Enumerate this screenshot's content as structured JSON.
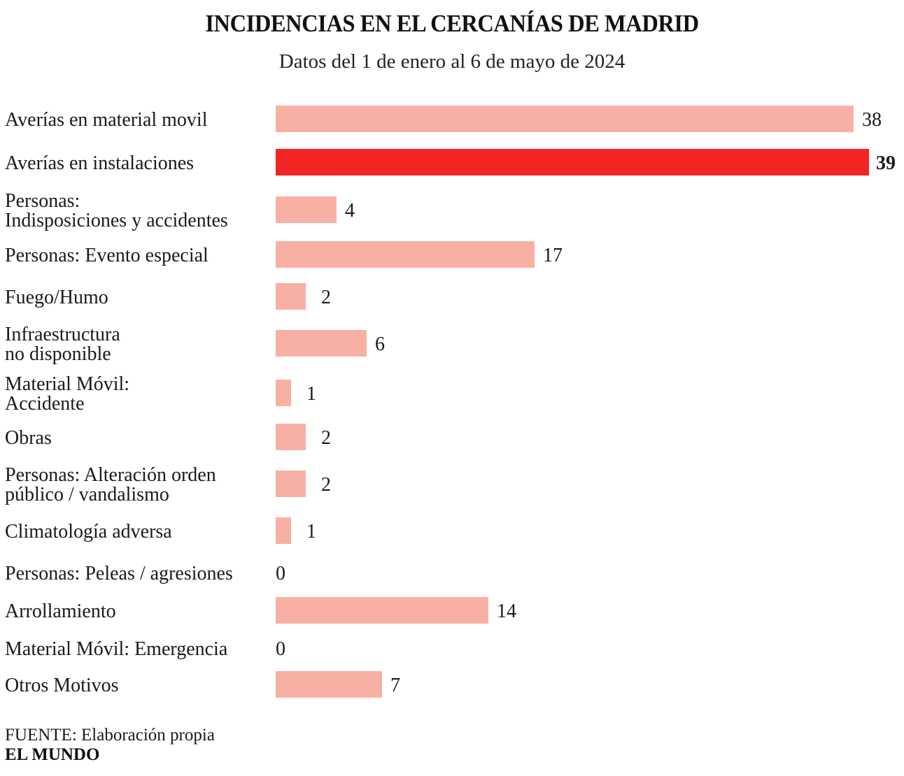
{
  "chart_data": {
    "type": "bar",
    "orientation": "horizontal",
    "title": "INCIDENCIAS EN EL CERCANÍAS DE MADRID",
    "subtitle": "Datos del 1 de enero al 6 de mayo de 2024",
    "categories": [
      [
        "Averías en material movil"
      ],
      [
        "Averías en instalaciones"
      ],
      [
        "Personas:",
        "Indisposiciones y accidentes"
      ],
      [
        "Personas: Evento especial"
      ],
      [
        "Fuego/Humo"
      ],
      [
        "Infraestructura",
        "no disponible"
      ],
      [
        "Material Móvil:",
        "Accidente"
      ],
      [
        "Obras"
      ],
      [
        "Personas: Alteración orden",
        "público / vandalismo"
      ],
      [
        "Climatología adversa"
      ],
      [
        "Personas: Peleas / agresiones"
      ],
      [
        "Arrollamiento"
      ],
      [
        "Material Móvil: Emergencia"
      ],
      [
        "Otros Motivos"
      ]
    ],
    "values": [
      38,
      39,
      4,
      17,
      2,
      6,
      1,
      2,
      2,
      1,
      0,
      14,
      0,
      7
    ],
    "highlight_index": 1,
    "xlim": [
      0,
      39
    ],
    "grid": false,
    "colors": {
      "bar": "#f9b0a4",
      "highlight": "#f22424"
    }
  },
  "source": {
    "prefix": "FUENTE:",
    "text": "Elaboración propia"
  },
  "brand": "EL MUNDO"
}
